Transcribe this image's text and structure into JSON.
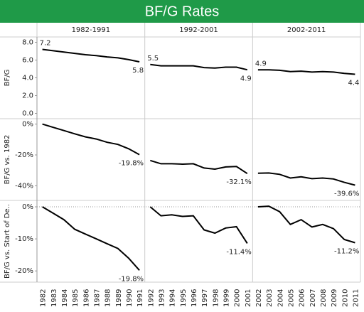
{
  "chart_data": {
    "type": "line",
    "title": "BF/G Rates",
    "color": "#000000",
    "columns": [
      "1982-1991",
      "1992-2001",
      "2002-2011"
    ],
    "x": [
      "1982",
      "1983",
      "1984",
      "1985",
      "1986",
      "1987",
      "1988",
      "1989",
      "1990",
      "1991",
      "1992",
      "1993",
      "1994",
      "1995",
      "1996",
      "1997",
      "1998",
      "1999",
      "2000",
      "2001",
      "2002",
      "2003",
      "2004",
      "2005",
      "2006",
      "2007",
      "2008",
      "2009",
      "2010",
      "2011"
    ],
    "rows": [
      {
        "axis_label": "BF/G",
        "ylim": [
          -0.6,
          8.6
        ],
        "yticks": [
          {
            "value": 0,
            "label": "0.0"
          },
          {
            "value": 2,
            "label": "2.0"
          },
          {
            "value": 4,
            "label": "4.0"
          },
          {
            "value": 6,
            "label": "6.0"
          },
          {
            "value": 8,
            "label": "8.0"
          }
        ],
        "values": [
          7.2,
          7.05,
          6.9,
          6.75,
          6.6,
          6.5,
          6.35,
          6.25,
          6.05,
          5.8,
          5.5,
          5.35,
          5.35,
          5.35,
          5.35,
          5.15,
          5.1,
          5.2,
          5.2,
          4.9,
          4.9,
          4.9,
          4.85,
          4.7,
          4.75,
          4.65,
          4.7,
          4.65,
          4.5,
          4.4
        ],
        "value_labels": [
          "7.2",
          null,
          null,
          null,
          null,
          null,
          null,
          null,
          null,
          "5.8",
          "5.5",
          null,
          null,
          null,
          null,
          null,
          null,
          null,
          null,
          "4.9",
          "4.9",
          null,
          null,
          null,
          null,
          null,
          null,
          null,
          null,
          "4.4"
        ]
      },
      {
        "axis_label": "BF/G vs. 1982",
        "ylim": [
          -49.5,
          3.5
        ],
        "yticks": [
          {
            "value": 0,
            "label": "0%"
          },
          {
            "value": -20,
            "label": "-20%"
          },
          {
            "value": -40,
            "label": "-40%"
          }
        ],
        "values": [
          0,
          -2.1,
          -4.2,
          -6.3,
          -8.3,
          -9.7,
          -11.8,
          -13.2,
          -16.0,
          -19.8,
          -23.6,
          -25.7,
          -25.7,
          -26.0,
          -25.7,
          -28.5,
          -29.2,
          -27.8,
          -27.5,
          -32.1,
          -31.9,
          -31.7,
          -32.6,
          -35.0,
          -34.2,
          -35.4,
          -35.0,
          -35.6,
          -37.8,
          -39.6
        ],
        "value_labels": [
          null,
          null,
          null,
          null,
          null,
          null,
          null,
          null,
          null,
          "-19.8%",
          null,
          null,
          null,
          null,
          null,
          null,
          null,
          null,
          null,
          "-32.1%",
          null,
          null,
          null,
          null,
          null,
          null,
          null,
          null,
          null,
          "-39.6%"
        ]
      },
      {
        "axis_label": "BF/G vs. Start of De..",
        "ylim": [
          -23.5,
          2
        ],
        "zero_line": true,
        "yticks": [
          {
            "value": 0,
            "label": "0%"
          },
          {
            "value": -10,
            "label": "-10%"
          },
          {
            "value": -20,
            "label": "-20%"
          }
        ],
        "values": [
          0,
          -2.0,
          -4.0,
          -7.0,
          -8.5,
          -10.0,
          -11.5,
          -13.0,
          -16.0,
          -19.8,
          0,
          -2.8,
          -2.5,
          -3.0,
          -2.8,
          -7.2,
          -8.2,
          -6.6,
          -6.2,
          -11.4,
          0,
          0.2,
          -1.5,
          -5.5,
          -4.0,
          -6.3,
          -5.5,
          -6.8,
          -10.2,
          -11.2
        ],
        "value_labels": [
          null,
          null,
          null,
          null,
          null,
          null,
          null,
          null,
          null,
          "-19.8%",
          null,
          null,
          null,
          null,
          null,
          null,
          null,
          null,
          null,
          "-11.4%",
          null,
          null,
          null,
          null,
          null,
          null,
          null,
          null,
          null,
          "-11.2%"
        ]
      }
    ]
  }
}
